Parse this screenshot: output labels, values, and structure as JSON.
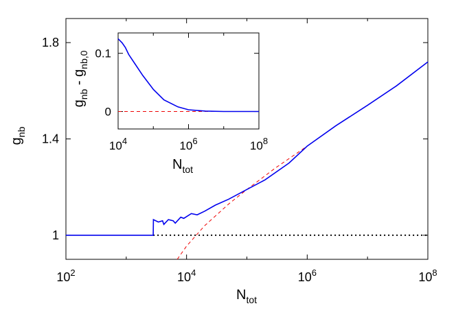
{
  "chart_data": [
    {
      "type": "line",
      "xscale": "log",
      "xlim": [
        100,
        100000000
      ],
      "ylim": [
        0.9,
        1.9
      ],
      "xticks": [
        {
          "value": 100,
          "base": "10",
          "exp": "2"
        },
        {
          "value": 10000,
          "base": "10",
          "exp": "4"
        },
        {
          "value": 1000000,
          "base": "10",
          "exp": "6"
        },
        {
          "value": 100000000,
          "base": "10",
          "exp": "8"
        }
      ],
      "yticks": [
        {
          "value": 1.0,
          "label": "1"
        },
        {
          "value": 1.4,
          "label": "1.4"
        },
        {
          "value": 1.8,
          "label": "1.8"
        }
      ],
      "xlabel": {
        "main": "N",
        "sub": "tot"
      },
      "ylabel": {
        "main": "g",
        "sub": "nb"
      },
      "reference_level": 1.0,
      "series": [
        {
          "color": "#0000ee",
          "style": "solid",
          "points": [
            [
              100,
              1.0
            ],
            [
              2800,
              1.0
            ],
            [
              2820,
              1.065
            ],
            [
              3400,
              1.055
            ],
            [
              4000,
              1.06
            ],
            [
              4200,
              1.045
            ],
            [
              5000,
              1.065
            ],
            [
              6000,
              1.06
            ],
            [
              6500,
              1.05
            ],
            [
              8000,
              1.075
            ],
            [
              9000,
              1.07
            ],
            [
              12000,
              1.09
            ],
            [
              15000,
              1.085
            ],
            [
              20000,
              1.1
            ],
            [
              30000,
              1.125
            ],
            [
              50000,
              1.15
            ],
            [
              100000,
              1.19
            ],
            [
              200000,
              1.23
            ],
            [
              500000,
              1.3
            ],
            [
              1000000,
              1.37
            ],
            [
              3000000,
              1.455
            ],
            [
              10000000,
              1.54
            ],
            [
              30000000,
              1.62
            ],
            [
              100000000,
              1.72
            ]
          ]
        },
        {
          "color": "#ee0000",
          "style": "dashed",
          "points": [
            [
              7000,
              0.9
            ],
            [
              10000,
              0.955
            ],
            [
              20000,
              1.04
            ],
            [
              50000,
              1.13
            ],
            [
              100000,
              1.19
            ],
            [
              300000,
              1.28
            ],
            [
              1000000,
              1.37
            ],
            [
              3000000,
              1.455
            ],
            [
              10000000,
              1.54
            ],
            [
              30000000,
              1.62
            ],
            [
              100000000,
              1.72
            ]
          ]
        }
      ]
    },
    {
      "type": "line",
      "xscale": "log",
      "xlim": [
        10000,
        100000000
      ],
      "ylim": [
        -0.03,
        0.135
      ],
      "xticks": [
        {
          "value": 10000,
          "base": "10",
          "exp": "4"
        },
        {
          "value": 1000000,
          "base": "10",
          "exp": "6"
        },
        {
          "value": 100000000,
          "base": "10",
          "exp": "8"
        }
      ],
      "yticks": [
        {
          "value": 0,
          "label": "0"
        },
        {
          "value": 0.1,
          "label": "0.1"
        }
      ],
      "xlabel": {
        "main": "N",
        "sub": "tot"
      },
      "ylabel": {
        "parts": [
          [
            "g",
            "nb"
          ],
          [
            " - g",
            "nb,0"
          ]
        ]
      },
      "series": [
        {
          "color": "#0000ee",
          "style": "solid",
          "points": [
            [
              10000,
              0.125
            ],
            [
              13000,
              0.118
            ],
            [
              16000,
              0.11
            ],
            [
              20000,
              0.098
            ],
            [
              30000,
              0.082
            ],
            [
              50000,
              0.062
            ],
            [
              100000,
              0.038
            ],
            [
              200000,
              0.02
            ],
            [
              500000,
              0.008
            ],
            [
              1000000,
              0.003
            ],
            [
              3000000,
              0.0008
            ],
            [
              10000000,
              0.0
            ],
            [
              100000000,
              0.0
            ]
          ]
        },
        {
          "color": "#ee0000",
          "style": "dashed",
          "points": [
            [
              10000,
              0
            ],
            [
              100000000,
              0
            ]
          ]
        }
      ]
    }
  ]
}
